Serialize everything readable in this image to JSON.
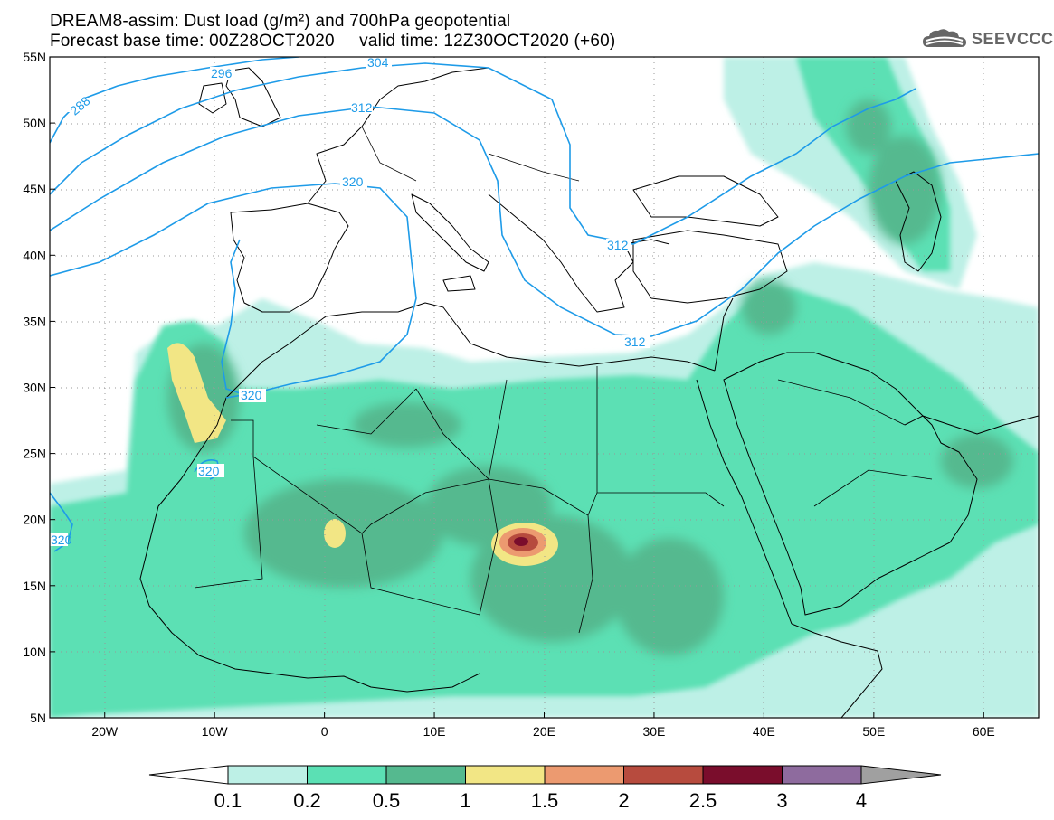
{
  "header": {
    "title_line1": "DREAM8-assim: Dust load (g/m²) and 700hPa geopotential",
    "title_line2": "Forecast base time: 00Z28OCT2020     valid time: 12Z30OCT2020 (+60)"
  },
  "logo": {
    "text": "SEEVCCC",
    "icon": "cloud-icon",
    "color": "#666666"
  },
  "map": {
    "lat_labels": [
      "55N",
      "50N",
      "45N",
      "40N",
      "35N",
      "30N",
      "25N",
      "20N",
      "15N",
      "10N",
      "5N"
    ],
    "lat_values": [
      55,
      50,
      45,
      40,
      35,
      30,
      25,
      20,
      15,
      10,
      5
    ],
    "lon_labels": [
      "20W",
      "10W",
      "0",
      "10E",
      "20E",
      "30E",
      "40E",
      "50E",
      "60E"
    ],
    "lon_values": [
      -20,
      -10,
      0,
      10,
      20,
      30,
      40,
      50,
      60
    ],
    "lon_range": [
      -25,
      65
    ],
    "lat_range": [
      5,
      55
    ],
    "contour_color": "#1e9be8",
    "contour_labels": [
      "304",
      "296",
      "288",
      "312",
      "320",
      "320",
      "320",
      "312",
      "312",
      "304",
      "320"
    ]
  },
  "colorbar": {
    "ticks": [
      "0.1",
      "0.2",
      "0.5",
      "1",
      "1.5",
      "2",
      "2.5",
      "3",
      "4"
    ],
    "colors": [
      "#bdf0e6",
      "#5be0b4",
      "#55b98f",
      "#f2e685",
      "#ec9a70",
      "#b74b3e",
      "#7a0d2c",
      "#8e6b9e"
    ],
    "under_color": "#ffffff",
    "over_color": "#a0a0a0"
  }
}
